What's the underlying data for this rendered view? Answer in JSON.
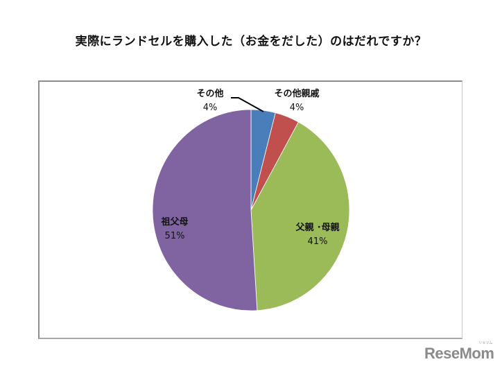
{
  "title": "実際にランドセルを購入した（お金をだした）のはだれですか？",
  "chart_data": {
    "type": "pie",
    "title": "実際にランドセルを購入した（お金をだした）のはだれですか？",
    "start_angle_deg": 0,
    "direction": "clockwise",
    "slices": [
      {
        "label": "その他",
        "value": 4,
        "display": "4%",
        "color": "#4a7ebb"
      },
      {
        "label": "その他親戚",
        "value": 4,
        "display": "4%",
        "color": "#c0504d"
      },
      {
        "label": "父親・母親",
        "value": 41,
        "display": "41%",
        "color": "#9bbb59"
      },
      {
        "label": "祖父母",
        "value": 51,
        "display": "51%",
        "color": "#8064a2"
      }
    ],
    "legend": "none",
    "data_labels": "category name and percentage"
  },
  "labels": {
    "other": {
      "name": "その他",
      "pct": "4%"
    },
    "relatives": {
      "name": "その他親戚",
      "pct": "4%"
    },
    "parents": {
      "name": "父親 ･母親",
      "pct": "41%"
    },
    "grandparents": {
      "name": "祖父母",
      "pct": "51%"
    }
  },
  "logo": {
    "text": "ReseMom",
    "ruby": "リセマム"
  }
}
